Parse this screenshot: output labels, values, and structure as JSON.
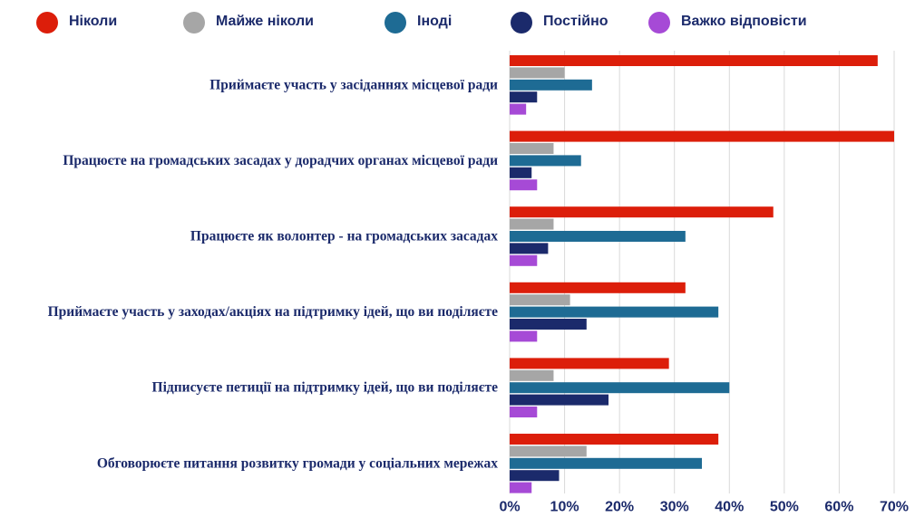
{
  "colors": {
    "never": "#dc1e0a",
    "almost_never": "#a6a6a6",
    "sometimes": "#1e6b94",
    "always": "#1b2a6b",
    "hard_to_say": "#a64ad6",
    "grid": "#d9d9d9",
    "text": "#1b2a6b"
  },
  "chart_data": {
    "type": "bar",
    "orientation": "horizontal",
    "legend_position": "top",
    "grid": true,
    "xlim": [
      0,
      70
    ],
    "xticks": [
      0,
      10,
      20,
      30,
      40,
      50,
      60,
      70
    ],
    "xtick_labels": [
      "0%",
      "10%",
      "20%",
      "30%",
      "40%",
      "50%",
      "60%",
      "70%"
    ],
    "categories": [
      "Приймаєте участь у засіданнях місцевої ради",
      "Працюєте на громадських засадах у дорадчих органах місцевої ради",
      "Працюєте як волонтер - на громадських засадах",
      "Приймаєте участь у заходах/акціях на підтримку ідей, що ви поділяєте",
      "Підписуєте петиції на підтримку ідей, що ви поділяєте",
      "Обговорюєте питання розвитку громади у соціальних мережах"
    ],
    "series": [
      {
        "name": "Ніколи",
        "color": "#dc1e0a",
        "values": [
          67,
          70,
          48,
          32,
          29,
          38
        ]
      },
      {
        "name": "Майже ніколи",
        "color": "#a6a6a6",
        "values": [
          10,
          8,
          8,
          11,
          8,
          14
        ]
      },
      {
        "name": "Іноді",
        "color": "#1e6b94",
        "values": [
          15,
          13,
          32,
          38,
          40,
          35
        ]
      },
      {
        "name": "Постійно",
        "color": "#1b2a6b",
        "values": [
          5,
          4,
          7,
          14,
          18,
          9
        ]
      },
      {
        "name": "Важко відповісти",
        "color": "#a64ad6",
        "values": [
          3,
          5,
          5,
          5,
          5,
          4
        ]
      }
    ]
  }
}
